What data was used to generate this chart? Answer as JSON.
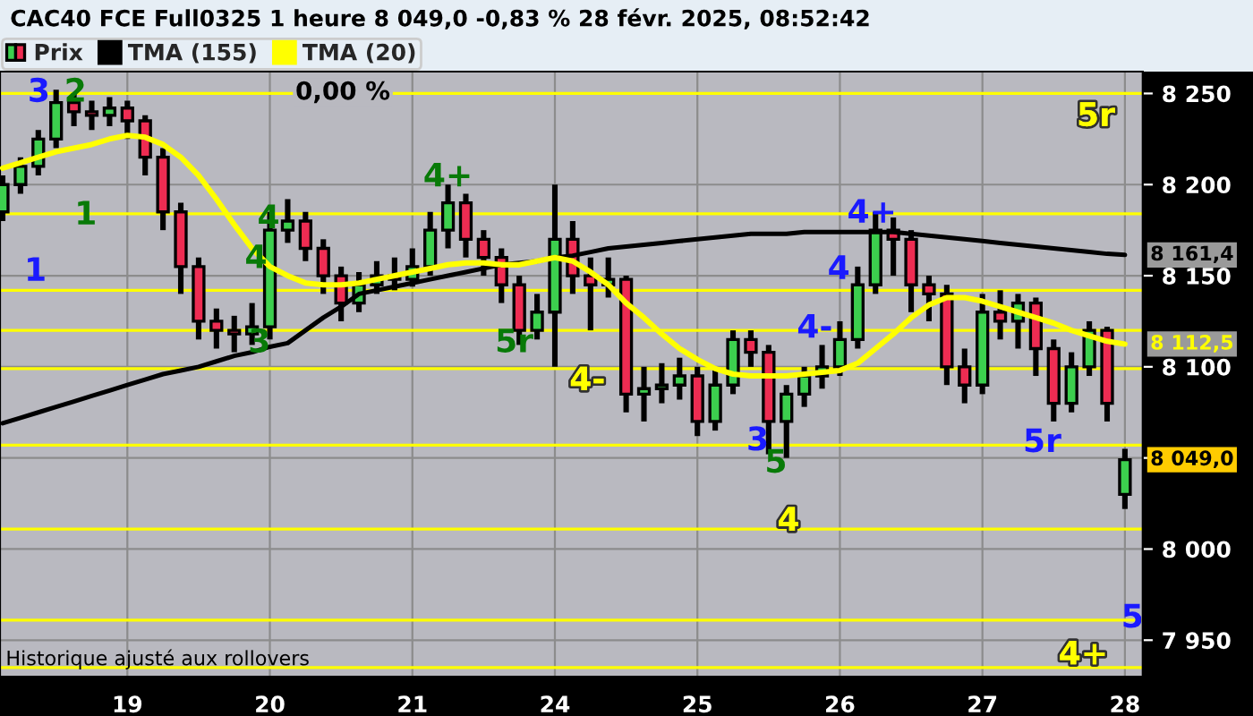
{
  "chart_data": {
    "type": "candlestick",
    "title": "CAC40 FCE Full0325 1 heure 8 049,0 -0,83 % 28 févr. 2025, 08:52:42",
    "categories": [
      null,
      null,
      null,
      null,
      null,
      null,
      null,
      "19",
      null,
      null,
      null,
      null,
      null,
      null,
      null,
      "20",
      null,
      null,
      null,
      null,
      null,
      null,
      null,
      "21",
      null,
      null,
      null,
      null,
      null,
      null,
      null,
      "24",
      null,
      null,
      null,
      null,
      null,
      null,
      null,
      "25",
      null,
      null,
      null,
      null,
      null,
      null,
      null,
      "26",
      null,
      null,
      null,
      null,
      null,
      null,
      null,
      "27",
      null,
      null,
      null,
      null,
      null,
      null,
      null,
      "28"
    ],
    "series": [
      {
        "name": "Prix",
        "type": "candlestick",
        "colors": [
          "#3ccf4e",
          "#3ccf4e",
          "#3ccf4e",
          "#3ccf4e",
          "#ee2c52",
          "#ee2c52",
          "#3ccf4e",
          "#ee2c52",
          "#ee2c52",
          "#ee2c52",
          "#ee2c52",
          "#ee2c52",
          "#ee2c52",
          "#ee2c52",
          "#3ccf4e",
          "#3ccf4e",
          "#3ccf4e",
          "#ee2c52",
          "#ee2c52",
          "#ee2c52",
          "#3ccf4e",
          "#3ccf4e",
          "#ee2c52",
          "#3ccf4e",
          "#3ccf4e",
          "#3ccf4e",
          "#ee2c52",
          "#ee2c52",
          "#ee2c52",
          "#ee2c52",
          "#3ccf4e",
          "#3ccf4e",
          "#ee2c52",
          "#ee2c52",
          "#3ccf4e",
          "#ee2c52",
          "#3ccf4e",
          "#3ccf4e",
          "#3ccf4e",
          "#ee2c52",
          "#3ccf4e",
          "#3ccf4e",
          "#ee2c52",
          "#ee2c52",
          "#3ccf4e",
          "#3ccf4e",
          "#3ccf4e",
          "#3ccf4e",
          "#3ccf4e",
          "#3ccf4e",
          "#ee2c52",
          "#ee2c52",
          "#ee2c52",
          "#ee2c52",
          "#ee2c52",
          "#3ccf4e",
          "#ee2c52",
          "#3ccf4e",
          "#ee2c52",
          "#ee2c52",
          "#3ccf4e",
          "#3ccf4e",
          "#ee2c52",
          "#3ccf4e"
        ],
        "value_labels": [
          null,
          null,
          null,
          null,
          null,
          null,
          null,
          null,
          null,
          null,
          null,
          null,
          null,
          null,
          null,
          null,
          null,
          null,
          null,
          null,
          null,
          null,
          null,
          null,
          null,
          null,
          null,
          null,
          null,
          null,
          null,
          null,
          null,
          null,
          null,
          null,
          null,
          null,
          null,
          null,
          null,
          null,
          null,
          null,
          null,
          null,
          null,
          null,
          null,
          null,
          null,
          null,
          null,
          null,
          null,
          null,
          null,
          null,
          null,
          null,
          null,
          null,
          null,
          "8 049,0"
        ],
        "ohlc": [
          [
            8185,
            8205,
            8180,
            8200
          ],
          [
            8200,
            8215,
            8195,
            8210
          ],
          [
            8210,
            8230,
            8205,
            8225
          ],
          [
            8225,
            8252,
            8220,
            8245
          ],
          [
            8245,
            8250,
            8232,
            8240
          ],
          [
            8240,
            8246,
            8230,
            8238
          ],
          [
            8238,
            8248,
            8232,
            8242
          ],
          [
            8242,
            8246,
            8225,
            8235
          ],
          [
            8235,
            8238,
            8205,
            8215
          ],
          [
            8215,
            8220,
            8175,
            8185
          ],
          [
            8185,
            8190,
            8140,
            8155
          ],
          [
            8155,
            8160,
            8115,
            8125
          ],
          [
            8125,
            8132,
            8110,
            8120
          ],
          [
            8120,
            8128,
            8108,
            8118
          ],
          [
            8118,
            8135,
            8112,
            8122
          ],
          [
            8122,
            8185,
            8115,
            8175
          ],
          [
            8175,
            8192,
            8168,
            8180
          ],
          [
            8180,
            8185,
            8158,
            8165
          ],
          [
            8165,
            8170,
            8140,
            8150
          ],
          [
            8150,
            8155,
            8125,
            8135
          ],
          [
            8135,
            8152,
            8130,
            8145
          ],
          [
            8145,
            8158,
            8140,
            8150
          ],
          [
            8150,
            8160,
            8142,
            8148
          ],
          [
            8148,
            8165,
            8144,
            8155
          ],
          [
            8155,
            8185,
            8150,
            8175
          ],
          [
            8175,
            8200,
            8165,
            8190
          ],
          [
            8190,
            8195,
            8160,
            8170
          ],
          [
            8170,
            8175,
            8150,
            8160
          ],
          [
            8160,
            8165,
            8135,
            8145
          ],
          [
            8145,
            8150,
            8112,
            8120
          ],
          [
            8120,
            8140,
            8115,
            8130
          ],
          [
            8130,
            8200,
            8100,
            8170
          ],
          [
            8170,
            8180,
            8140,
            8150
          ],
          [
            8150,
            8160,
            8120,
            8145
          ],
          [
            8145,
            8160,
            8138,
            8148
          ],
          [
            8148,
            8150,
            8075,
            8085
          ],
          [
            8085,
            8100,
            8070,
            8088
          ],
          [
            8088,
            8102,
            8080,
            8090
          ],
          [
            8090,
            8105,
            8082,
            8095
          ],
          [
            8095,
            8100,
            8062,
            8070
          ],
          [
            8070,
            8098,
            8065,
            8090
          ],
          [
            8090,
            8120,
            8085,
            8115
          ],
          [
            8115,
            8120,
            8100,
            8108
          ],
          [
            8108,
            8112,
            8052,
            8070
          ],
          [
            8070,
            8090,
            8050,
            8085
          ],
          [
            8085,
            8100,
            8078,
            8095
          ],
          [
            8095,
            8112,
            8088,
            8100
          ],
          [
            8100,
            8125,
            8095,
            8115
          ],
          [
            8115,
            8155,
            8110,
            8145
          ],
          [
            8145,
            8185,
            8140,
            8175
          ],
          [
            8175,
            8182,
            8150,
            8170
          ],
          [
            8170,
            8175,
            8130,
            8145
          ],
          [
            8145,
            8150,
            8125,
            8140
          ],
          [
            8140,
            8145,
            8090,
            8100
          ],
          [
            8100,
            8110,
            8080,
            8090
          ],
          [
            8090,
            8140,
            8085,
            8130
          ],
          [
            8130,
            8142,
            8115,
            8125
          ],
          [
            8125,
            8140,
            8110,
            8135
          ],
          [
            8135,
            8138,
            8095,
            8110
          ],
          [
            8110,
            8115,
            8070,
            8080
          ],
          [
            8080,
            8108,
            8075,
            8100
          ],
          [
            8100,
            8125,
            8095,
            8120
          ],
          [
            8120,
            8122,
            8070,
            8080
          ],
          [
            8030,
            8055,
            8022,
            8049
          ]
        ]
      },
      {
        "name": "TMA (155)",
        "type": "line",
        "color": "#000000",
        "values": [
          8069,
          8072,
          8075,
          8078,
          8081,
          8084,
          8087,
          8090,
          8093,
          8096,
          8098,
          8100,
          8103,
          8106,
          8108,
          8111,
          8113,
          8120,
          8127,
          8133,
          8140,
          8142,
          8144,
          8146,
          8148,
          8150,
          8152,
          8154,
          8156,
          8157,
          8158,
          8160,
          8161,
          8163,
          8165,
          8166,
          8167,
          8168,
          8169,
          8170,
          8171,
          8172,
          8173,
          8173,
          8173,
          8174,
          8174,
          8174,
          8174,
          8174,
          8174,
          8173,
          8172,
          8171,
          8170,
          8169,
          8168,
          8167,
          8166,
          8165,
          8164,
          8163,
          8162,
          8161.4
        ],
        "value_labels": [
          null,
          null,
          null,
          null,
          null,
          null,
          null,
          null,
          null,
          null,
          null,
          null,
          null,
          null,
          null,
          null,
          null,
          null,
          null,
          null,
          null,
          null,
          null,
          null,
          null,
          null,
          null,
          null,
          null,
          null,
          null,
          null,
          null,
          null,
          null,
          null,
          null,
          null,
          null,
          null,
          null,
          null,
          null,
          null,
          null,
          null,
          null,
          null,
          null,
          null,
          null,
          null,
          null,
          null,
          null,
          null,
          null,
          null,
          null,
          null,
          null,
          null,
          null,
          "8 161,4"
        ]
      },
      {
        "name": "TMA (20)",
        "type": "line",
        "color": "#ffff00",
        "values": [
          8209,
          8212,
          8215,
          8218,
          8220,
          8222,
          8225,
          8227,
          8226,
          8222,
          8215,
          8205,
          8192,
          8178,
          8165,
          8155,
          8150,
          8146,
          8145,
          8145,
          8146,
          8148,
          8150,
          8152,
          8154,
          8156,
          8157,
          8157,
          8156,
          8156,
          8158,
          8160,
          8158,
          8152,
          8145,
          8135,
          8127,
          8118,
          8110,
          8104,
          8099,
          8096,
          8095,
          8095,
          8095,
          8096,
          8097,
          8098,
          8102,
          8110,
          8118,
          8127,
          8134,
          8138,
          8138,
          8136,
          8133,
          8130,
          8127,
          8124,
          8120,
          8117,
          8114,
          8112.5
        ],
        "value_labels": [
          null,
          null,
          null,
          null,
          null,
          null,
          null,
          null,
          null,
          null,
          null,
          null,
          null,
          null,
          null,
          null,
          null,
          null,
          null,
          null,
          null,
          null,
          null,
          null,
          null,
          null,
          null,
          null,
          null,
          null,
          null,
          null,
          null,
          null,
          null,
          null,
          null,
          null,
          null,
          null,
          null,
          null,
          null,
          null,
          null,
          null,
          null,
          null,
          null,
          null,
          null,
          null,
          null,
          null,
          null,
          null,
          null,
          null,
          null,
          null,
          null,
          null,
          null,
          "8 112,5"
        ]
      }
    ],
    "ylim": [
      7930,
      8262
    ],
    "yticks": [
      {
        "value": 7950,
        "label": "7 950"
      },
      {
        "value": 8000,
        "label": "8 000"
      },
      {
        "value": 8050,
        "label": null
      },
      {
        "value": 8100,
        "label": "8 100"
      },
      {
        "value": 8150,
        "label": "8 150"
      },
      {
        "value": 8200,
        "label": "8 200"
      },
      {
        "value": 8250,
        "label": "8 250"
      }
    ],
    "ref_lines": [
      {
        "axis": "y",
        "value": 8250,
        "color": "#ffff00"
      },
      {
        "axis": "y",
        "value": 8184,
        "color": "#ffff00"
      },
      {
        "axis": "y",
        "value": 8142,
        "color": "#ffff00"
      },
      {
        "axis": "y",
        "value": 8120,
        "color": "#ffff00"
      },
      {
        "axis": "y",
        "value": 8099,
        "color": "#ffff00"
      },
      {
        "axis": "y",
        "value": 8057,
        "color": "#ffff00"
      },
      {
        "axis": "y",
        "value": 8011,
        "color": "#ffff00"
      },
      {
        "axis": "y",
        "value": 7961,
        "color": "#ffff00"
      },
      {
        "axis": "y",
        "value": 7935,
        "color": "#ffff00"
      }
    ],
    "annotations": [
      "3",
      "2",
      "1",
      "1",
      "4",
      "4",
      "3",
      "4+",
      "5r",
      "4-",
      "3",
      "5",
      "4",
      "4+",
      "4",
      "4-",
      "5r",
      "5r",
      "5",
      "4+",
      "0,00 %",
      "Historique ajusté aux rollovers"
    ],
    "grid": true,
    "legend": "top left"
  }
}
